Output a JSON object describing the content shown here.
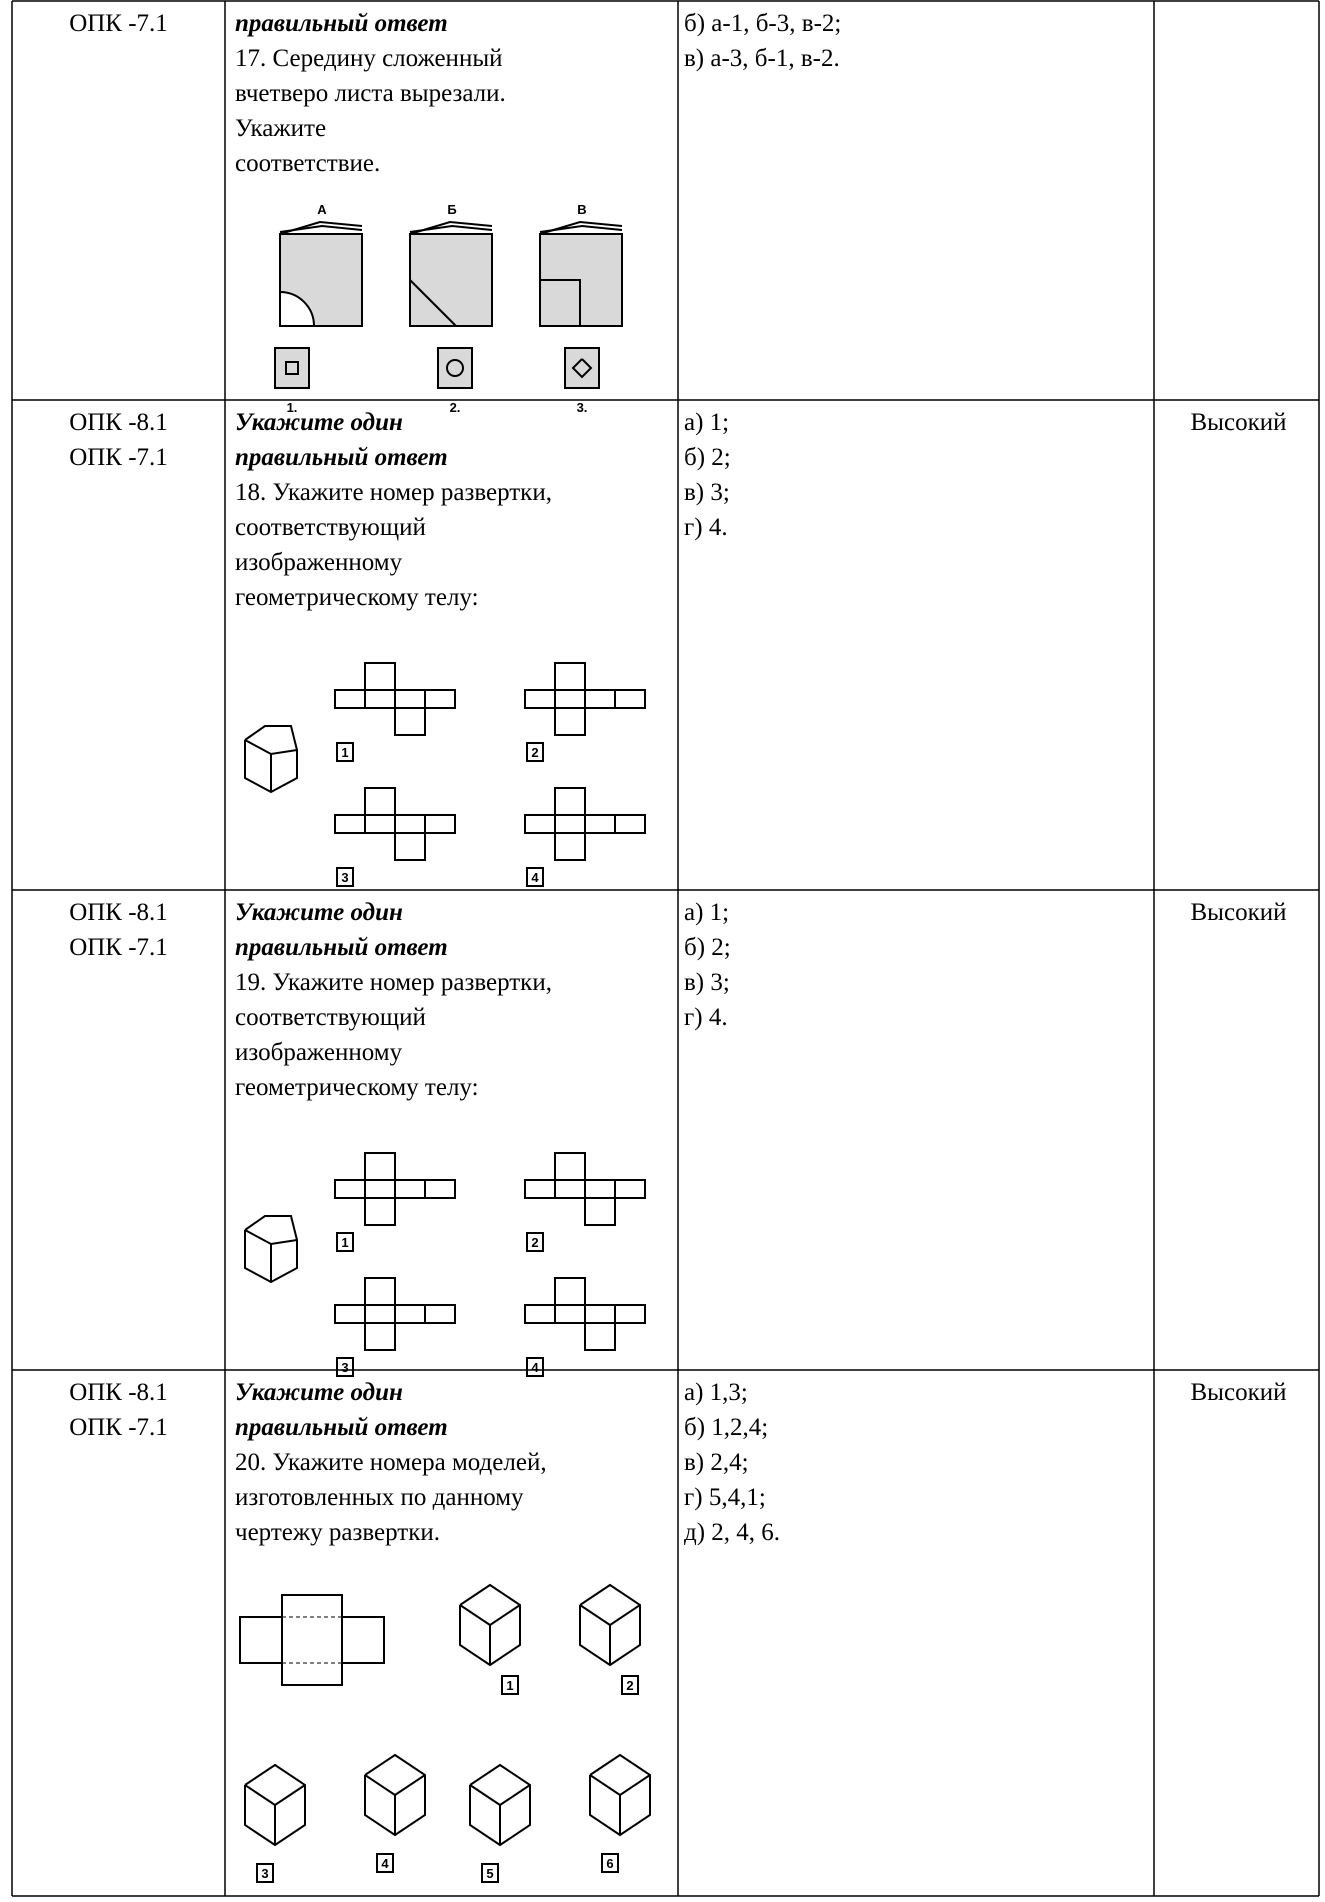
{
  "table": {
    "rows": [
      {
        "competencies": [
          "ОПК -7.1"
        ],
        "instruction": [
          "правильный ответ"
        ],
        "text": [
          "17. Середину сложенный",
          "вчетверо листа вырезали.",
          "Укажите",
          "соответствие."
        ],
        "answers": [
          "б) а-1, б-3, в-2;",
          "в) а-3, б-1, в-2."
        ],
        "figure_labels": [
          "А",
          "Б",
          "В",
          "1.",
          "2.",
          "3."
        ]
      },
      {
        "competencies": [
          "ОПК -8.1",
          "ОПК -7.1"
        ],
        "instruction": [
          "Укажите один",
          "правильный ответ"
        ],
        "text": [
          "18. Укажите номер развертки,",
          "соответствующий",
          "изображенному",
          "геометрическому телу:"
        ],
        "answers": [
          "а) 1;",
          "б) 2;",
          "в) 3;",
          "г) 4."
        ],
        "level": "Высокий",
        "figure_labels": [
          "1",
          "2",
          "3",
          "4"
        ]
      },
      {
        "competencies": [
          "ОПК -8.1",
          "ОПК -7.1"
        ],
        "instruction": [
          "Укажите один",
          "правильный ответ"
        ],
        "text": [
          "19. Укажите номер развертки,",
          "соответствующий",
          "изображенному",
          "геометрическому телу:"
        ],
        "answers": [
          "а) 1;",
          "б) 2;",
          "в) 3;",
          "г) 4."
        ],
        "level": "Высокий",
        "figure_labels": [
          "1",
          "2",
          "3",
          "4"
        ]
      },
      {
        "competencies": [
          "ОПК -8.1",
          "ОПК -7.1"
        ],
        "instruction": [
          "Укажите один",
          "правильный ответ"
        ],
        "text": [
          "20. Укажите номера моделей,",
          "изготовленных по данному",
          "чертежу развертки."
        ],
        "answers": [
          "а) 1,3;",
          "б) 1,2,4;",
          "в) 2,4;",
          "г) 5,4,1;",
          "д) 2, 4, 6."
        ],
        "level": "Высокий",
        "figure_labels": [
          "1",
          "2",
          "3",
          "4",
          "5",
          "6"
        ]
      }
    ]
  }
}
